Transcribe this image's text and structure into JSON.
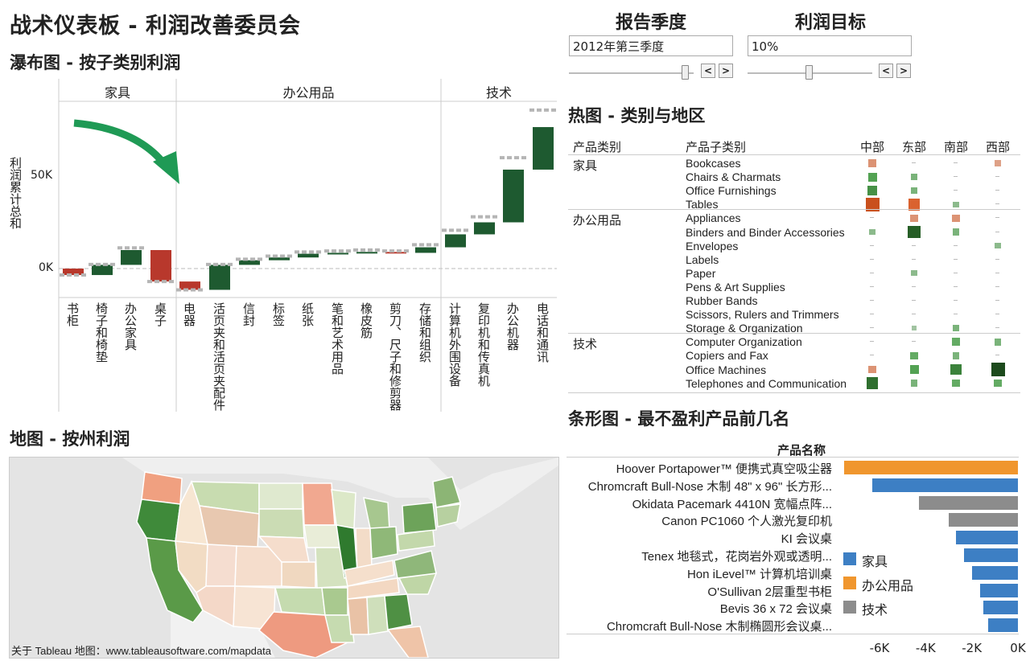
{
  "dashboard_title": "战术仪表板 - 利润改善委员会",
  "controls": {
    "quarter": {
      "label": "报告季度",
      "value": "2012年第三季度",
      "slider_fraction": 0.93
    },
    "target": {
      "label": "利润目标",
      "value": "10%",
      "slider_fraction": 0.49
    }
  },
  "waterfall": {
    "title": "瀑布图 - 按子类别利润",
    "ylabel": "利润累计总和",
    "y_ticks": [
      "50K",
      "0K"
    ],
    "groups": [
      "家具",
      "办公用品",
      "技术"
    ],
    "chart_data": {
      "type": "bar",
      "subtype": "waterfall",
      "ylabel": "利润累计总和",
      "yticks": [
        0,
        50000
      ],
      "categories": [
        "书柜",
        "椅子和椅垫",
        "办公家具",
        "桌子",
        "电器",
        "活页夹和活页夹配件",
        "信封",
        "标签",
        "纸张",
        "笔和艺术用品",
        "橡皮筋",
        "剪刀、尺子和修剪器",
        "存储和组织",
        "计算机外围设备",
        "复印机和传真机",
        "办公机器",
        "电话和通讯"
      ],
      "groups": [
        "家具",
        "家具",
        "家具",
        "家具",
        "办公用品",
        "办公用品",
        "办公用品",
        "办公用品",
        "办公用品",
        "办公用品",
        "办公用品",
        "办公用品",
        "办公用品",
        "技术",
        "技术",
        "技术",
        "技术"
      ],
      "values": [
        -3500,
        5500,
        8000,
        -17000,
        -4500,
        13500,
        2500,
        1500,
        2000,
        500,
        500,
        -500,
        3000,
        7000,
        6500,
        28500,
        23000
      ]
    }
  },
  "map": {
    "title": "地图 - 按州利润",
    "credit": "关于 Tableau 地图：www.tableausoftware.com/mapdata"
  },
  "heatmap": {
    "title": "热图 - 类别与地区",
    "col_headers": [
      "产品类别",
      "产品子类别"
    ],
    "regions": [
      "中部",
      "东部",
      "南部",
      "西部"
    ],
    "categories": [
      {
        "name": "家具",
        "subs": [
          "Bookcases",
          "Chairs & Charmats",
          "Office Furnishings",
          "Tables"
        ]
      },
      {
        "name": "办公用品",
        "subs": [
          "Appliances",
          "Binders and Binder Accessories",
          "Envelopes",
          "Labels",
          "Paper",
          "Pens & Art Supplies",
          "Rubber Bands",
          "Scissors, Rulers and Trimmers",
          "Storage & Organization"
        ]
      },
      {
        "name": "技术",
        "subs": [
          "Computer Organization",
          "Copiers and Fax",
          "Office Machines",
          "Telephones and Communication"
        ]
      }
    ],
    "cells": [
      [
        -0.4,
        0.0,
        0.0,
        -0.3
      ],
      [
        0.5,
        0.3,
        0.0,
        0.0
      ],
      [
        0.6,
        0.3,
        0.0,
        0.0
      ],
      [
        -1.0,
        -0.8,
        0.2,
        0.0
      ],
      [
        0.0,
        -0.4,
        -0.4,
        0.0
      ],
      [
        0.2,
        0.9,
        0.3,
        0.0
      ],
      [
        0.0,
        0.0,
        0.0,
        0.2
      ],
      [
        0.0,
        0.0,
        0.0,
        0.0
      ],
      [
        0.0,
        0.2,
        0.0,
        0.0
      ],
      [
        0.0,
        0.0,
        0.0,
        0.0
      ],
      [
        0.0,
        0.0,
        0.0,
        0.0
      ],
      [
        0.0,
        0.0,
        0.0,
        0.0
      ],
      [
        0.0,
        0.1,
        0.3,
        0.0
      ],
      [
        0.0,
        0.0,
        0.4,
        0.3
      ],
      [
        0.0,
        0.4,
        0.3,
        0.0
      ],
      [
        -0.4,
        0.5,
        0.7,
        1.0
      ],
      [
        0.8,
        0.3,
        0.4,
        0.4
      ]
    ]
  },
  "barchart": {
    "title": "条形图 - 最不盈利产品前几名",
    "header": "产品名称",
    "x_ticks": [
      "-6K",
      "-4K",
      "-2K",
      "0K"
    ],
    "legend": [
      {
        "label": "家具",
        "color": "#3d7fc4"
      },
      {
        "label": "办公用品",
        "color": "#f0962e"
      },
      {
        "label": "技术",
        "color": "#8c8c8c"
      }
    ],
    "chart_data": {
      "type": "bar",
      "orientation": "horizontal",
      "xlim": [
        -7500,
        0
      ],
      "categories": [
        "Hoover Portapower™ 便携式真空吸尘器",
        "Chromcraft Bull-Nose 木制 48\" x 96\" 长方形...",
        "Okidata Pacemark 4410N 宽幅点阵...",
        "Canon PC1060 个人激光复印机",
        "KI 会议桌",
        "Tenex 地毯式，花岗岩外观或透明...",
        "Hon iLevel™ 计算机培训桌",
        "O'Sullivan 2层重型书柜",
        "Bevis 36 x 72 会议桌",
        "Chromcraft Bull-Nose 木制椭圆形会议桌..."
      ],
      "values": [
        -7600,
        -6300,
        -4300,
        -3000,
        -2700,
        -2350,
        -2000,
        -1650,
        -1500,
        -1300
      ],
      "series_category": [
        "办公用品",
        "家具",
        "技术",
        "技术",
        "家具",
        "家具",
        "家具",
        "家具",
        "家具",
        "家具"
      ]
    }
  }
}
